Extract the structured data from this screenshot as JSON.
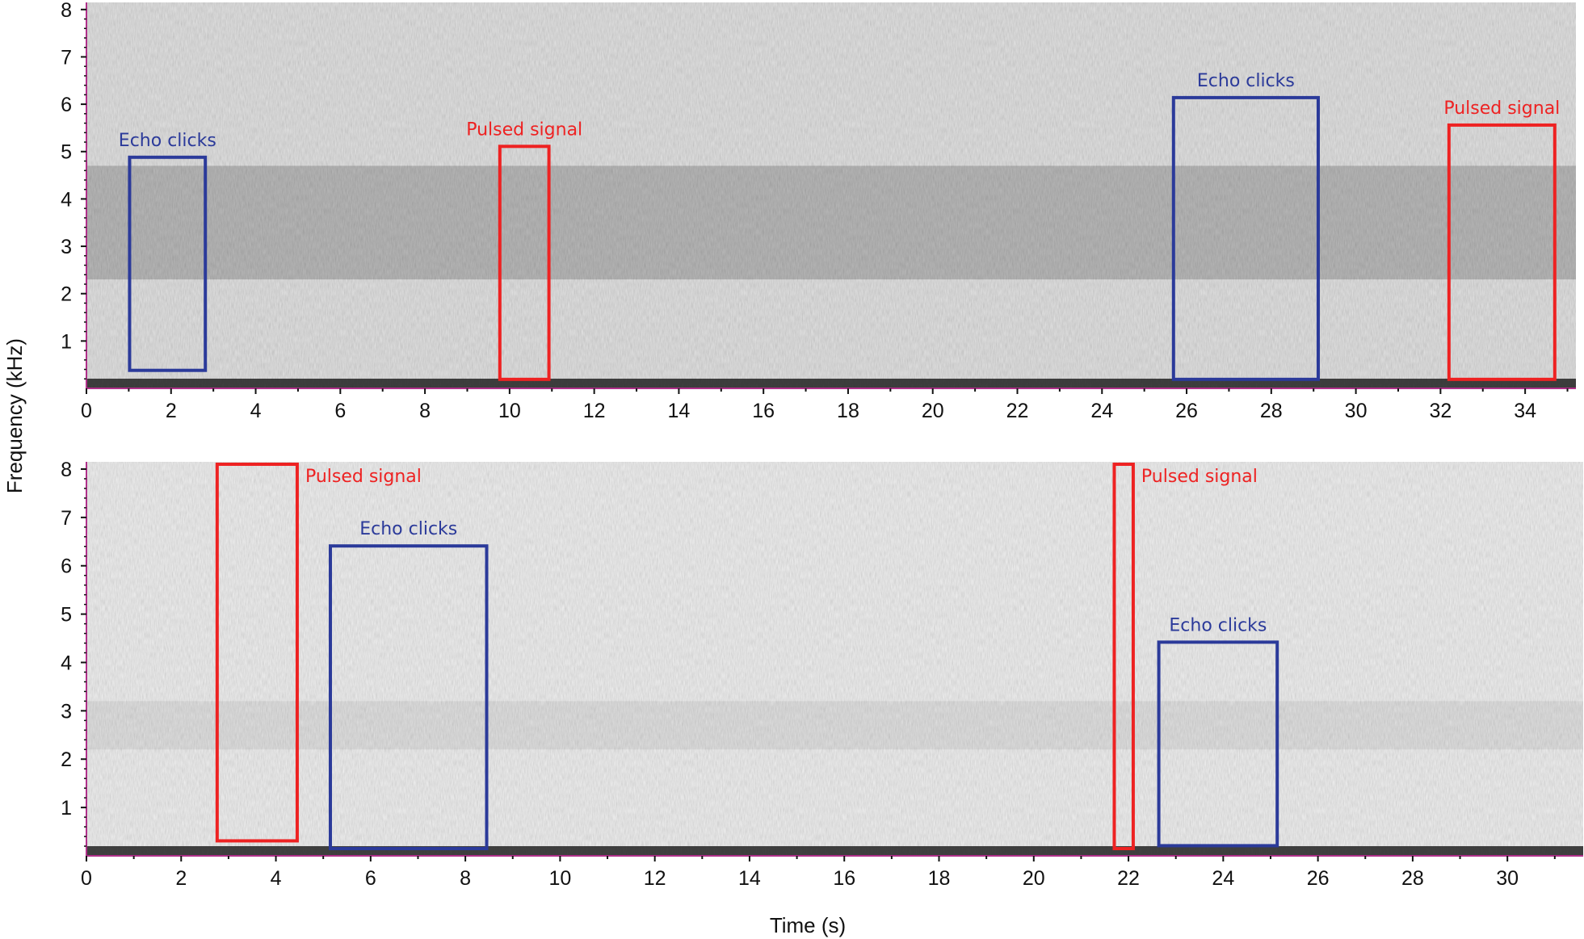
{
  "chart_data": {
    "type": "heatmap",
    "kind": "spectrogram",
    "xlabel": "Time (s)",
    "ylabel": "Frequency (kHz)",
    "colors": {
      "echo": "#2b3a9a",
      "pulsed": "#ee2222",
      "axis": "#b0308a"
    },
    "panels": [
      {
        "xlim": [
          0,
          35.2
        ],
        "ylim": [
          0,
          8.15
        ],
        "xticks": [
          0,
          2,
          4,
          6,
          8,
          10,
          12,
          14,
          16,
          18,
          20,
          22,
          24,
          26,
          28,
          30,
          32,
          34
        ],
        "yticks": [
          1,
          2,
          3,
          4,
          5,
          6,
          7,
          8
        ],
        "dark_band_khz": [
          2.3,
          4.7
        ],
        "annotations": [
          {
            "label": "Echo clicks",
            "t": [
              1.02,
              2.81
            ],
            "f": [
              0.38,
              4.88
            ],
            "kind": "echo",
            "label_pos": "above"
          },
          {
            "label": "Pulsed signal",
            "t": [
              9.77,
              10.93
            ],
            "f": [
              0.19,
              5.11
            ],
            "kind": "pulsed",
            "label_pos": "above"
          },
          {
            "label": "Echo clicks",
            "t": [
              25.69,
              29.11
            ],
            "f": [
              0.19,
              6.14
            ],
            "kind": "echo",
            "label_pos": "above"
          },
          {
            "label": "Pulsed signal",
            "t": [
              32.2,
              34.7
            ],
            "f": [
              0.19,
              5.56
            ],
            "kind": "pulsed",
            "label_pos": "above"
          }
        ]
      },
      {
        "xlim": [
          0,
          31.6
        ],
        "ylim": [
          0,
          8.15
        ],
        "xticks": [
          0,
          2,
          4,
          6,
          8,
          10,
          12,
          14,
          16,
          18,
          20,
          22,
          24,
          26,
          28,
          30
        ],
        "yticks": [
          1,
          2,
          3,
          4,
          5,
          6,
          7,
          8
        ],
        "dark_band_khz": [
          2.2,
          3.2
        ],
        "annotations": [
          {
            "label": "Pulsed signal",
            "t": [
              2.76,
              4.45
            ],
            "f": [
              0.31,
              8.1
            ],
            "kind": "pulsed",
            "label_pos": "right"
          },
          {
            "label": "Echo clicks",
            "t": [
              5.15,
              8.45
            ],
            "f": [
              0.15,
              6.41
            ],
            "kind": "echo",
            "label_pos": "above"
          },
          {
            "label": "Pulsed signal",
            "t": [
              21.7,
              22.1
            ],
            "f": [
              0.15,
              8.1
            ],
            "kind": "pulsed",
            "label_pos": "right"
          },
          {
            "label": "Echo clicks",
            "t": [
              22.64,
              25.14
            ],
            "f": [
              0.21,
              4.42
            ],
            "kind": "echo",
            "label_pos": "above"
          }
        ]
      }
    ]
  }
}
